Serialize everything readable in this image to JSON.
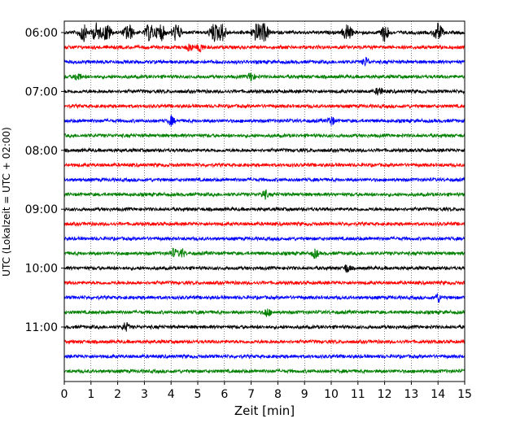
{
  "chart_data": {
    "type": "line",
    "title": "",
    "xlabel": "Zeit  [min]",
    "ylabel": "UTC (Lokalzeit = UTC + 02:00)",
    "xlim": [
      0,
      15
    ],
    "x_ticks": [
      "0",
      "1",
      "2",
      "3",
      "4",
      "5",
      "6",
      "7",
      "8",
      "9",
      "10",
      "11",
      "12",
      "13",
      "14",
      "15"
    ],
    "y_tick_labels": [
      "06:00",
      "07:00",
      "08:00",
      "09:00",
      "10:00",
      "11:00"
    ],
    "traces_per_hour": 4,
    "minutes_per_trace": 15,
    "trace_count": 24,
    "trace_color_cycle": [
      "#000000",
      "#ff0000",
      "#0000ff",
      "#008000"
    ],
    "grid": "vertical dotted lines at each minute",
    "notable_events": [
      {
        "trace_start": "06:00",
        "minutes": [
          0.7,
          1.2,
          1.6,
          2.4,
          3.2,
          3.6,
          4.2,
          5.6,
          5.9,
          7.2,
          7.5,
          10.6,
          12,
          14
        ]
      },
      {
        "trace_start": "06:15",
        "minutes": [
          4.7,
          5.1
        ]
      },
      {
        "trace_start": "06:30",
        "minutes": [
          11.3
        ]
      },
      {
        "trace_start": "06:45",
        "minutes": [
          0.5,
          7.0
        ]
      },
      {
        "trace_start": "07:00",
        "minutes": [
          11.8
        ]
      },
      {
        "trace_start": "07:30",
        "minutes": [
          4.0,
          10.0
        ]
      },
      {
        "trace_start": "08:45",
        "minutes": [
          7.5
        ]
      },
      {
        "trace_start": "09:45",
        "minutes": [
          4.1,
          4.4,
          9.4
        ]
      },
      {
        "trace_start": "10:00",
        "minutes": [
          10.6
        ]
      },
      {
        "trace_start": "10:30",
        "minutes": [
          14.0
        ]
      },
      {
        "trace_start": "10:45",
        "minutes": [
          7.6
        ]
      },
      {
        "trace_start": "11:00",
        "minutes": [
          2.3
        ]
      }
    ]
  }
}
